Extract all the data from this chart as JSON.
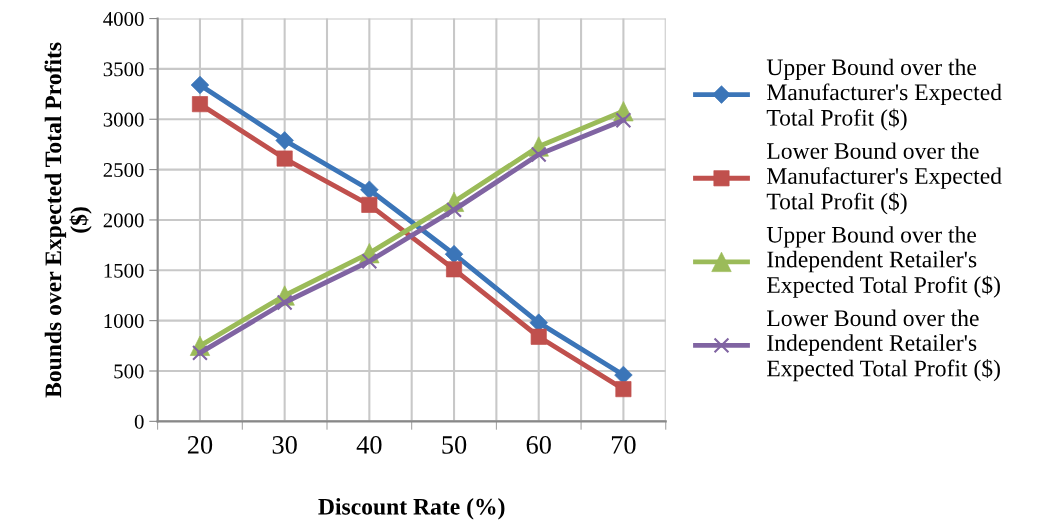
{
  "chart_data": {
    "type": "line",
    "xlabel": "Discount Rate (%)",
    "ylabel": "Bounds over Expected Total Profits\n($)",
    "categories": [
      "20",
      "30",
      "40",
      "50",
      "60",
      "70"
    ],
    "series": [
      {
        "name": "Upper Bound over the\nManufacturer's Expected\nTotal Profit ($)",
        "color": "#3b75b8",
        "marker": "diamond",
        "values": [
          3340,
          2790,
          2300,
          1660,
          980,
          460
        ]
      },
      {
        "name": "Lower Bound over the\nManufacturer's Expected\nTotal Profit ($)",
        "color": "#c0504d",
        "marker": "square",
        "values": [
          3150,
          2610,
          2150,
          1510,
          840,
          320
        ]
      },
      {
        "name": "Upper Bound over the\nIndependent Retailer's\nExpected Total Profit ($)",
        "color": "#9bbb59",
        "marker": "triangle",
        "values": [
          750,
          1250,
          1670,
          2180,
          2730,
          3080
        ]
      },
      {
        "name": "Lower Bound over the\nIndependent Retailer's\nExpected Total Profit ($)",
        "color": "#8064a2",
        "marker": "cross",
        "values": [
          680,
          1180,
          1590,
          2100,
          2650,
          2990
        ]
      }
    ],
    "ylim": [
      0,
      4000
    ],
    "yticks": [
      0,
      500,
      1000,
      1500,
      2000,
      2500,
      3000,
      3500,
      4000
    ],
    "grid": true,
    "legend": "right",
    "line_style": "solid"
  }
}
